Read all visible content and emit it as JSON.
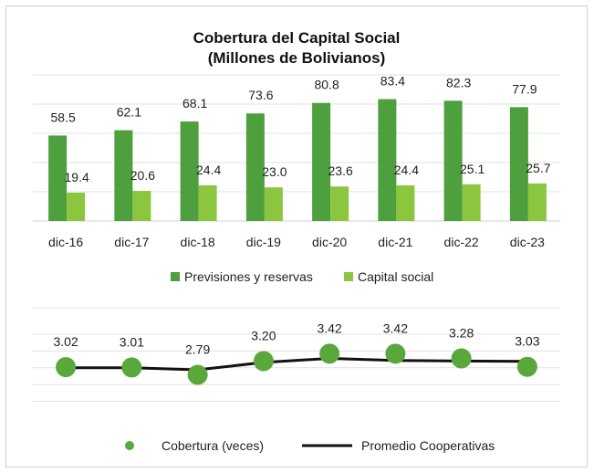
{
  "colors": {
    "previsiones": "#4e9f3d",
    "capital": "#8cc63e",
    "cobertura": "#5aa83c",
    "promedio": "#111111"
  },
  "chart_data": [
    {
      "type": "bar",
      "title": "Cobertura del Capital Social",
      "subtitle": "(Millones de Bolivianos)",
      "categories": [
        "dic-16",
        "dic-17",
        "dic-18",
        "dic-19",
        "dic-20",
        "dic-21",
        "dic-22",
        "dic-23"
      ],
      "series": [
        {
          "name": "Previsiones y reservas",
          "values": [
            58.5,
            62.1,
            68.1,
            73.6,
            80.8,
            83.4,
            82.3,
            77.9
          ]
        },
        {
          "name": "Capital social",
          "values": [
            19.4,
            20.6,
            24.4,
            23.0,
            23.6,
            24.4,
            25.1,
            25.7
          ]
        }
      ],
      "value_labels": {
        "previsiones": [
          "58.5",
          "62.1",
          "68.1",
          "73.6",
          "80.8",
          "83.4",
          "82.3",
          "77.9"
        ],
        "capital": [
          "19.4",
          "20.6",
          "24.4",
          "23.0",
          "23.6",
          "24.4",
          "25.1",
          "25.7"
        ]
      },
      "ylim": [
        0,
        100
      ],
      "grid": true,
      "legend": "bottom"
    },
    {
      "type": "line",
      "categories": [
        "dic-16",
        "dic-17",
        "dic-18",
        "dic-19",
        "dic-20",
        "dic-21",
        "dic-22",
        "dic-23"
      ],
      "series": [
        {
          "name": "Cobertura (veces)",
          "values": [
            3.02,
            3.01,
            2.79,
            3.2,
            3.42,
            3.42,
            3.28,
            3.03
          ],
          "style": "markers"
        },
        {
          "name": "Promedio Cooperativas",
          "values": [
            3.0,
            3.0,
            2.94,
            3.16,
            3.28,
            3.22,
            3.2,
            3.19
          ],
          "style": "line"
        }
      ],
      "value_labels": [
        "3.02",
        "3.01",
        "2.79",
        "3.20",
        "3.42",
        "3.42",
        "3.28",
        "3.03"
      ],
      "ylim": [
        1.5,
        4.0
      ],
      "grid": true,
      "legend": "bottom"
    }
  ]
}
